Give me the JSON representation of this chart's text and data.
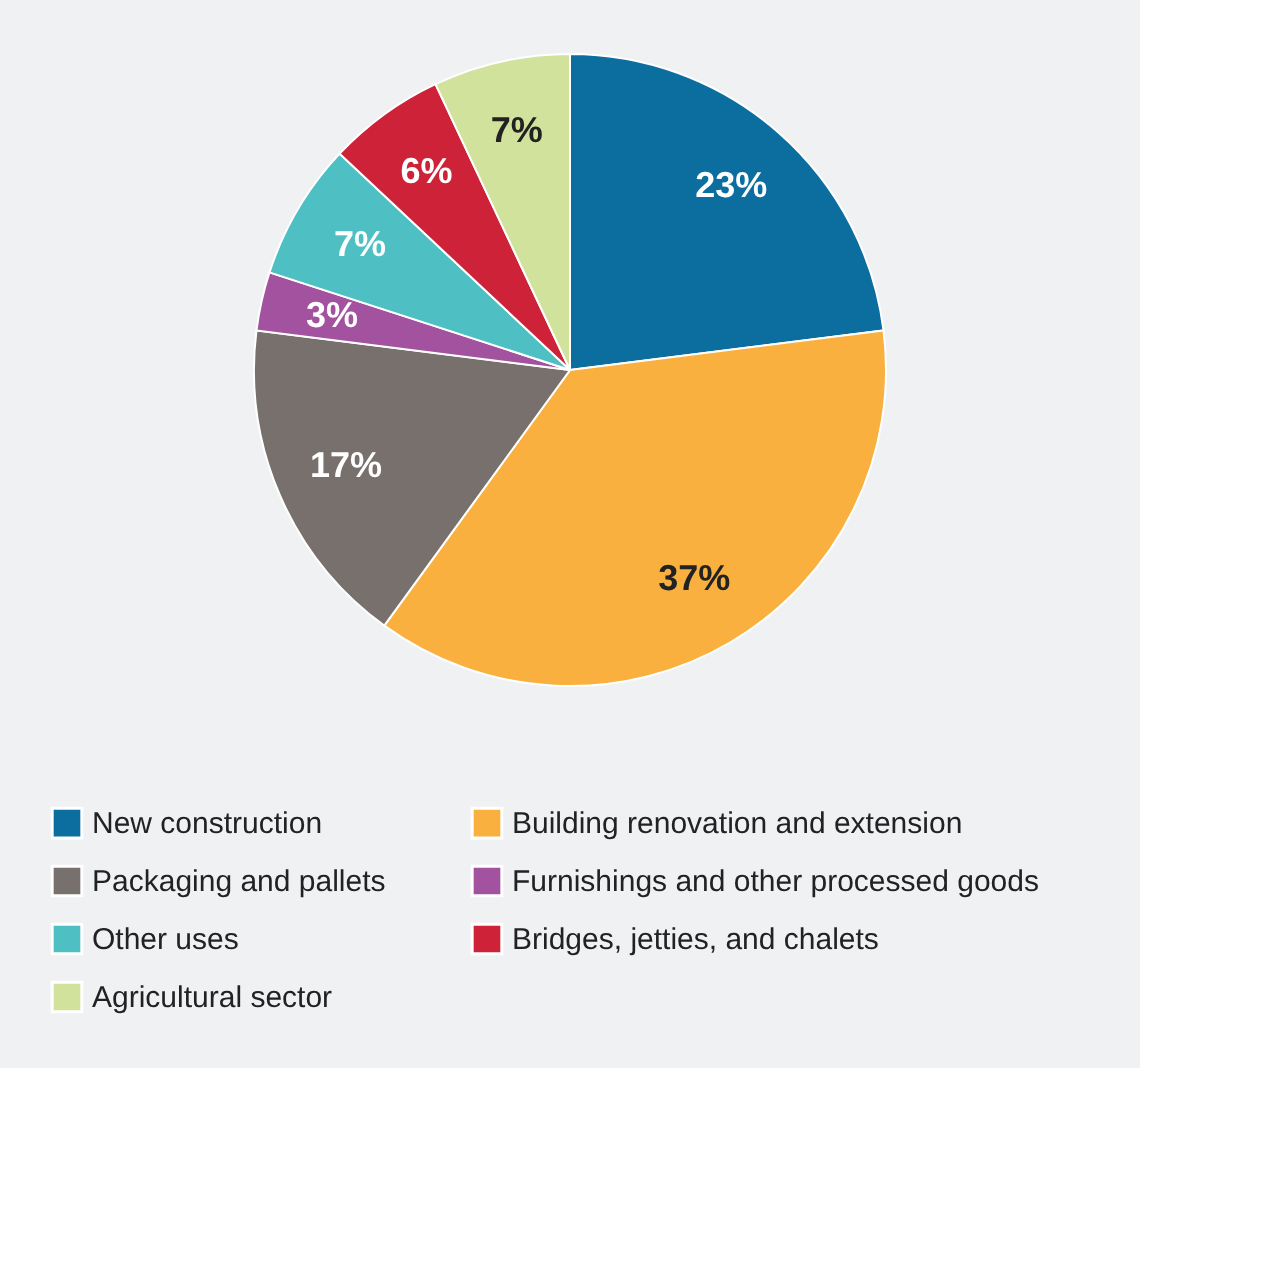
{
  "chart_data": {
    "type": "pie",
    "categories": [
      "New construction",
      "Building renovation and extension",
      "Packaging and pallets",
      "Furnishings and other processed goods",
      "Other uses",
      "Bridges, jetties, and chalets",
      "Agricultural sector"
    ],
    "values": [
      23,
      37,
      17,
      3,
      7,
      6,
      7
    ],
    "value_labels": [
      "23%",
      "37%",
      "17%",
      "3%",
      "7%",
      "6%",
      "7%"
    ],
    "colors": [
      "#0b6e9f",
      "#f9b03e",
      "#77706c",
      "#a2529f",
      "#4ec0c4",
      "#cd2238",
      "#d1e29d"
    ],
    "legend": "bottom"
  }
}
